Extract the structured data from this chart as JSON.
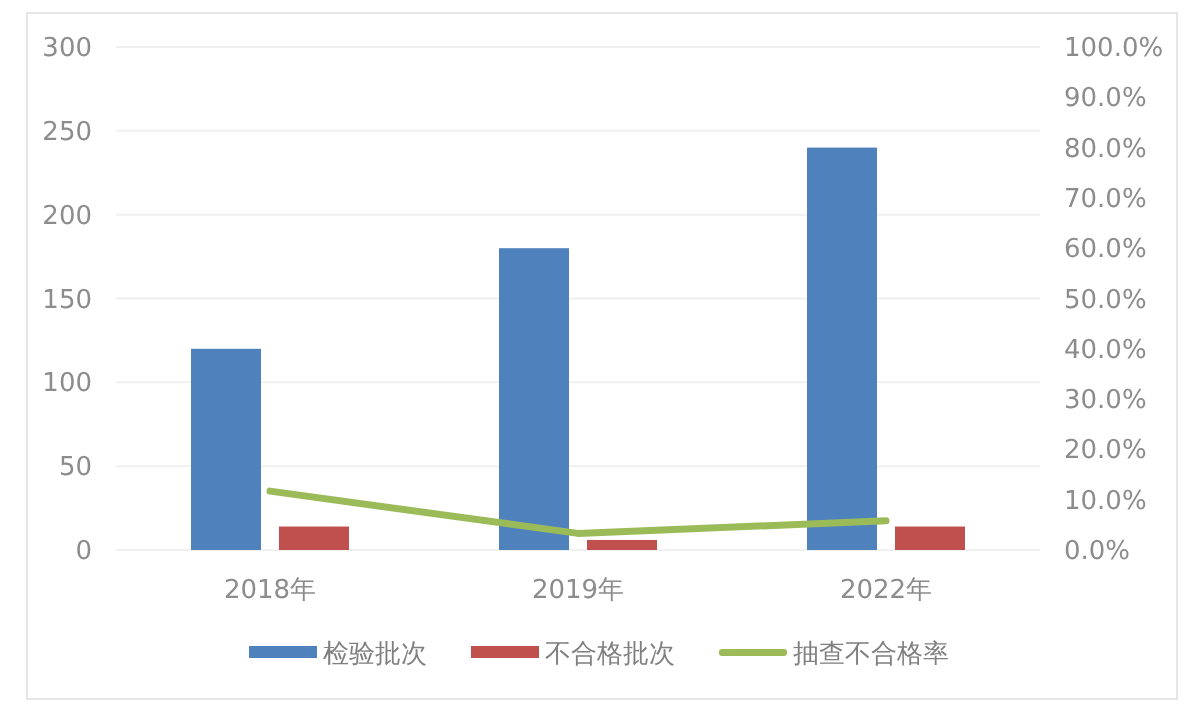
{
  "chart_data": {
    "type": "bar",
    "categories": [
      "2018年",
      "2019年",
      "2022年"
    ],
    "series": [
      {
        "name": "检验批次",
        "color": "#4f81bd",
        "values": [
          120,
          180,
          240
        ]
      },
      {
        "name": "不合格批次",
        "color": "#c0504d",
        "values": [
          14,
          6,
          14
        ]
      },
      {
        "name": "抽查不合格率",
        "type": "line",
        "axis": "y2",
        "color": "#9bbb59",
        "values": [
          11.7,
          3.3,
          5.8
        ]
      }
    ],
    "ylim": [
      0,
      300
    ],
    "yticks": [
      0,
      50,
      100,
      150,
      200,
      250,
      300
    ],
    "y2lim": [
      0,
      100
    ],
    "y2ticks": [
      {
        "value": 0,
        "label": "0.0%"
      },
      {
        "value": 10,
        "label": "10.0%"
      },
      {
        "value": 20,
        "label": "20.0%"
      },
      {
        "value": 30,
        "label": "30.0%"
      },
      {
        "value": 40,
        "label": "40.0%"
      },
      {
        "value": 50,
        "label": "50.0%"
      },
      {
        "value": 60,
        "label": "60.0%"
      },
      {
        "value": 70,
        "label": "70.0%"
      },
      {
        "value": 80,
        "label": "80.0%"
      },
      {
        "value": 90,
        "label": "90.0%"
      },
      {
        "value": 100,
        "label": "100.0%"
      }
    ],
    "grid": "y",
    "legend": "bottom",
    "line_style": "solid",
    "marker": "none"
  }
}
